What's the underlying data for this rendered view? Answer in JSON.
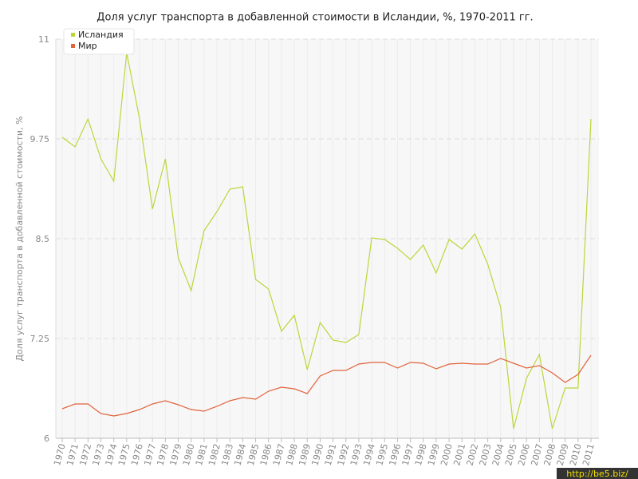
{
  "chart_data": {
    "type": "line",
    "title": "Доля услуг транспорта в добавленной стоимости в Исландии, %, 1970-2011 гг.",
    "y_label": "Доля услуг транспорта в добавленной стоимости, %",
    "categories": [
      "1970",
      "1971",
      "1972",
      "1973",
      "1974",
      "1975",
      "1976",
      "1977",
      "1978",
      "1979",
      "1980",
      "1981",
      "1982",
      "1983",
      "1984",
      "1985",
      "1986",
      "1987",
      "1988",
      "1989",
      "1990",
      "1991",
      "1992",
      "1993",
      "1994",
      "1995",
      "1996",
      "1997",
      "1998",
      "1999",
      "2000",
      "2001",
      "2002",
      "2003",
      "2004",
      "2005",
      "2006",
      "2007",
      "2008",
      "2009",
      "2010",
      "2011"
    ],
    "series": [
      {
        "name": "Исландия",
        "color": "#bcd63a",
        "values": [
          9.77,
          9.65,
          10.0,
          9.5,
          9.22,
          10.83,
          10.0,
          8.87,
          9.5,
          8.26,
          7.85,
          8.6,
          8.84,
          9.12,
          9.15,
          7.99,
          7.87,
          7.34,
          7.54,
          6.86,
          7.45,
          7.23,
          7.2,
          7.3,
          8.51,
          8.49,
          8.38,
          8.24,
          8.42,
          8.07,
          8.49,
          8.37,
          8.56,
          8.18,
          7.64,
          6.12,
          6.75,
          7.05,
          6.12,
          6.63,
          6.63,
          10.0
        ]
      },
      {
        "name": "Мир",
        "color": "#e0643c",
        "values": [
          6.37,
          6.43,
          6.43,
          6.31,
          6.28,
          6.31,
          6.36,
          6.43,
          6.47,
          6.42,
          6.36,
          6.34,
          6.4,
          6.47,
          6.51,
          6.49,
          6.59,
          6.64,
          6.62,
          6.56,
          6.78,
          6.85,
          6.85,
          6.93,
          6.95,
          6.95,
          6.88,
          6.95,
          6.94,
          6.87,
          6.93,
          6.94,
          6.93,
          6.93,
          7.0,
          6.94,
          6.88,
          6.91,
          6.82,
          6.7,
          6.8,
          7.04
        ]
      }
    ],
    "ylim": [
      6,
      11
    ],
    "yticks": [
      6,
      7.25,
      8.5,
      9.75,
      11
    ],
    "grid": true,
    "legend": "top-left"
  },
  "watermark": "http://be5.biz/"
}
